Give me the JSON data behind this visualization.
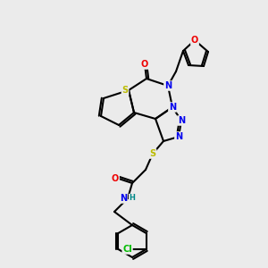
{
  "bg_color": "#ebebeb",
  "atom_colors": {
    "C": "#000000",
    "N": "#0000ee",
    "O": "#ee0000",
    "S": "#bbbb00",
    "Cl": "#00bb00",
    "H": "#008888"
  },
  "figsize": [
    3.0,
    3.0
  ],
  "dpi": 100
}
